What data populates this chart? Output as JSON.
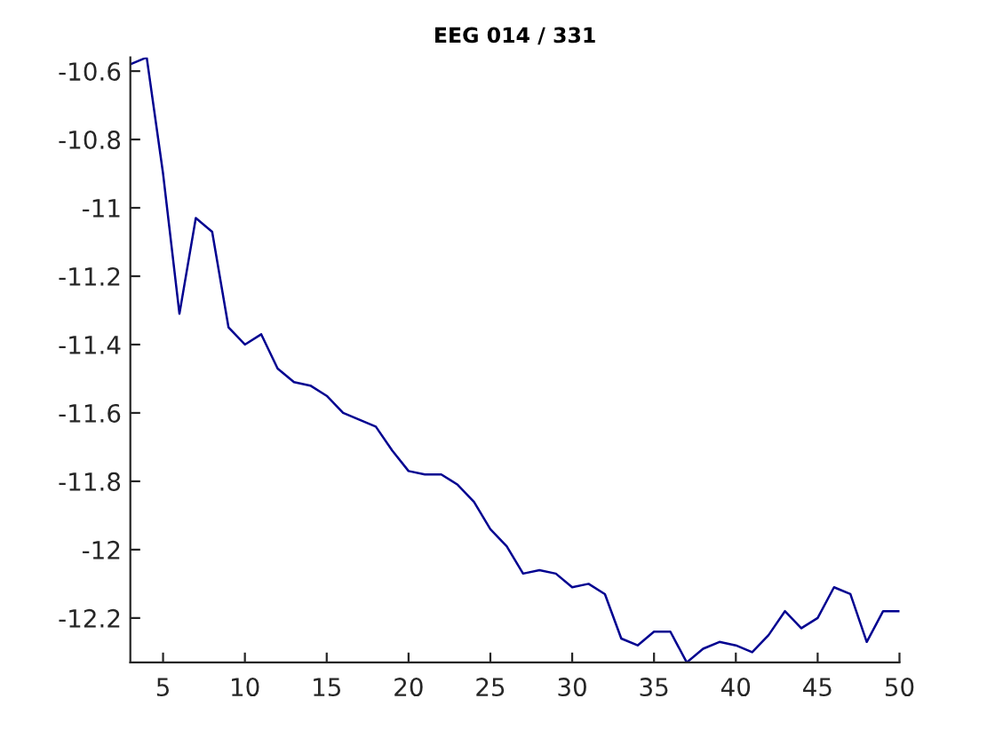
{
  "chart_data": {
    "type": "line",
    "title": "EEG 014 / 331",
    "x": [
      3,
      4,
      5,
      6,
      7,
      8,
      9,
      10,
      11,
      12,
      13,
      14,
      15,
      16,
      17,
      18,
      19,
      20,
      21,
      22,
      23,
      24,
      25,
      26,
      27,
      28,
      29,
      30,
      31,
      32,
      33,
      34,
      35,
      36,
      37,
      38,
      39,
      40,
      41,
      42,
      43,
      44,
      45,
      46,
      47,
      48,
      49,
      50
    ],
    "values": [
      -10.58,
      -10.56,
      -10.9,
      -11.31,
      -11.03,
      -11.07,
      -11.35,
      -11.4,
      -11.37,
      -11.47,
      -11.51,
      -11.52,
      -11.55,
      -11.6,
      -11.62,
      -11.64,
      -11.71,
      -11.77,
      -11.78,
      -11.78,
      -11.81,
      -11.86,
      -11.94,
      -11.99,
      -12.07,
      -12.06,
      -12.07,
      -12.11,
      -12.1,
      -12.13,
      -12.26,
      -12.28,
      -12.24,
      -12.24,
      -12.33,
      -12.29,
      -12.27,
      -12.28,
      -12.3,
      -12.25,
      -12.18,
      -12.23,
      -12.2,
      -12.11,
      -12.13,
      -12.27,
      -12.18,
      -12.18
    ],
    "color": "#000090",
    "xlim": [
      3,
      50
    ],
    "ylim": [
      -12.33,
      -10.56
    ],
    "xticks": [
      5,
      10,
      15,
      20,
      25,
      30,
      35,
      40,
      45,
      50
    ],
    "yticks": [
      -12.2,
      -12,
      -11.8,
      -11.6,
      -11.4,
      -11.2,
      -11,
      -10.8,
      -10.6
    ]
  }
}
